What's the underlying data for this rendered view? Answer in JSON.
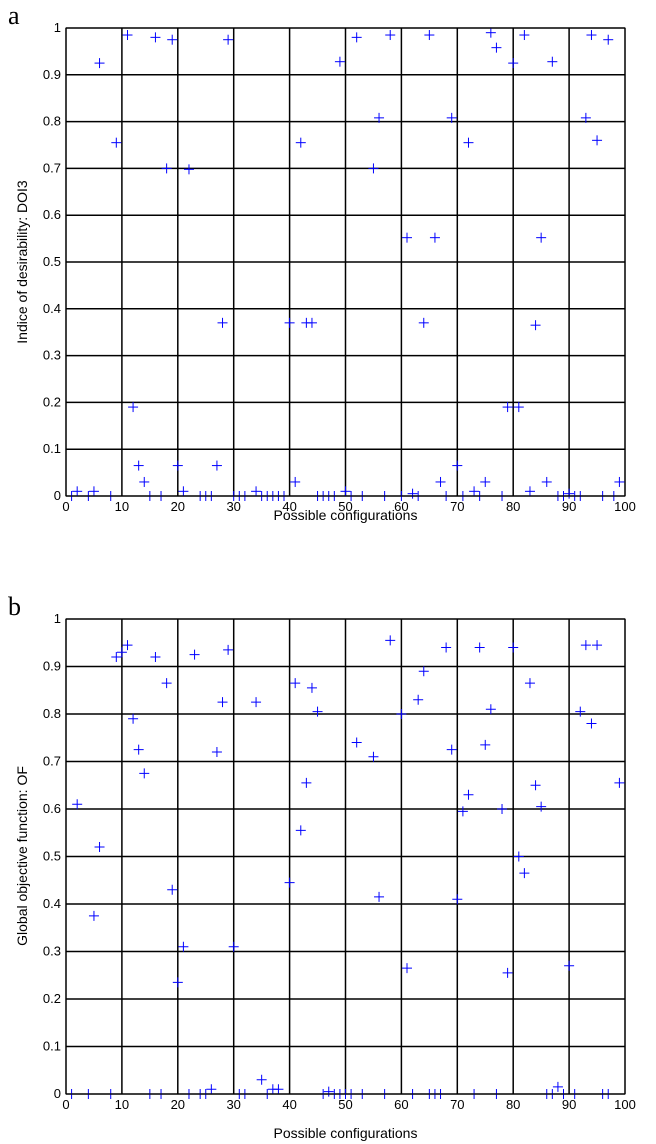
{
  "chart_data": [
    {
      "type": "scatter",
      "panel_label": "a",
      "xlabel": "Possible configurations",
      "ylabel": "Indice of desirability: DOI3",
      "xlim": [
        0,
        100
      ],
      "ylim": [
        0,
        1
      ],
      "xticks": [
        "0",
        "10",
        "20",
        "30",
        "40",
        "50",
        "60",
        "70",
        "80",
        "90",
        "100"
      ],
      "yticks": [
        "0",
        "0.1",
        "0.2",
        "0.3",
        "0.4",
        "0.5",
        "0.6",
        "0.7",
        "0.8",
        "0.9",
        "1"
      ],
      "grid": true,
      "marker": "+",
      "color": "#0000ff",
      "x": [
        1,
        2,
        4,
        5,
        6,
        8,
        9,
        11,
        12,
        13,
        14,
        15,
        16,
        17,
        18,
        19,
        20,
        21,
        22,
        24,
        25,
        26,
        27,
        28,
        29,
        30,
        31,
        32,
        34,
        35,
        36,
        37,
        38,
        39,
        40,
        41,
        42,
        43,
        44,
        45,
        46,
        47,
        48,
        49,
        50,
        51,
        52,
        53,
        55,
        56,
        57,
        58,
        60,
        61,
        62,
        63,
        64,
        65,
        66,
        67,
        68,
        69,
        70,
        71,
        72,
        73,
        74,
        75,
        76,
        77,
        78,
        79,
        80,
        81,
        82,
        83,
        84,
        85,
        86,
        87,
        88,
        89,
        90,
        91,
        92,
        93,
        94,
        95,
        96,
        97,
        98,
        99
      ],
      "y": [
        0,
        0.01,
        0,
        0.01,
        0.925,
        0,
        0.755,
        0.985,
        0.19,
        0.065,
        0.03,
        0,
        0.98,
        0,
        0.7,
        0.975,
        0.065,
        0.01,
        0.698,
        0,
        0,
        0,
        0.065,
        0.37,
        0.975,
        0,
        0,
        0,
        0.01,
        0,
        0,
        0,
        0,
        0,
        0.37,
        0.03,
        0.755,
        0.37,
        0.37,
        0,
        0,
        0,
        0,
        0.928,
        0.01,
        0,
        0.98,
        0,
        0.7,
        0.808,
        0,
        0.985,
        0,
        0.552,
        0.005,
        0,
        0.37,
        0.985,
        0.552,
        0.03,
        0,
        0.808,
        0.065,
        0,
        0.755,
        0.01,
        0,
        0.03,
        0.99,
        0.958,
        0,
        0.19,
        0.925,
        0.19,
        0.985,
        0.01,
        0.365,
        0.552,
        0.03,
        0.928,
        0,
        0,
        0.005,
        0,
        0,
        0.808,
        0.985,
        0.76,
        0,
        0.975,
        0,
        0.03
      ]
    },
    {
      "type": "scatter",
      "panel_label": "b",
      "xlabel": "Possible configurations",
      "ylabel": "Global objective function: OF",
      "xlim": [
        0,
        100
      ],
      "ylim": [
        0,
        1
      ],
      "xticks": [
        "0",
        "10",
        "20",
        "30",
        "40",
        "50",
        "60",
        "70",
        "80",
        "90",
        "100"
      ],
      "yticks": [
        "0",
        "0.1",
        "0.2",
        "0.3",
        "0.4",
        "0.5",
        "0.6",
        "0.7",
        "0.8",
        "0.9",
        "1"
      ],
      "grid": true,
      "marker": "+",
      "color": "#0000ff",
      "x": [
        1,
        2,
        4,
        5,
        6,
        8,
        9,
        10,
        11,
        12,
        13,
        14,
        15,
        16,
        17,
        18,
        19,
        20,
        21,
        22,
        23,
        24,
        25,
        26,
        27,
        28,
        29,
        30,
        31,
        32,
        34,
        35,
        36,
        37,
        38,
        40,
        41,
        42,
        43,
        44,
        45,
        46,
        47,
        48,
        49,
        50,
        51,
        52,
        53,
        55,
        56,
        57,
        58,
        60,
        61,
        62,
        63,
        64,
        65,
        66,
        67,
        68,
        69,
        70,
        71,
        72,
        73,
        74,
        75,
        76,
        77,
        78,
        79,
        80,
        81,
        82,
        83,
        84,
        85,
        86,
        87,
        88,
        89,
        90,
        91,
        92,
        93,
        94,
        95,
        96,
        97,
        99
      ],
      "y": [
        0,
        0.61,
        0,
        0.375,
        0.52,
        0,
        0.92,
        0.93,
        0.945,
        0.79,
        0.725,
        0.675,
        0,
        0.92,
        0,
        0.865,
        0.43,
        0.235,
        0.31,
        0,
        0.925,
        0,
        0,
        0.01,
        0.72,
        0.825,
        0.935,
        0.31,
        0,
        0,
        0.825,
        0.03,
        0,
        0.01,
        0.01,
        0.445,
        0.865,
        0.555,
        0.655,
        0.855,
        0.805,
        0,
        0.005,
        0,
        0,
        0,
        0,
        0.74,
        0,
        0.71,
        0.415,
        0,
        0.955,
        0.8,
        0.265,
        0,
        0.83,
        0.89,
        0,
        0,
        0,
        0.94,
        0.725,
        0.41,
        0.595,
        0.63,
        0,
        0.94,
        0.735,
        0.81,
        0,
        0.6,
        0.255,
        0.94,
        0.5,
        0.465,
        0.865,
        0.65,
        0.605,
        0,
        0,
        0.015,
        0,
        0.27,
        0,
        0.805,
        0.945,
        0.78,
        0.945,
        0,
        0,
        0.655
      ]
    }
  ]
}
